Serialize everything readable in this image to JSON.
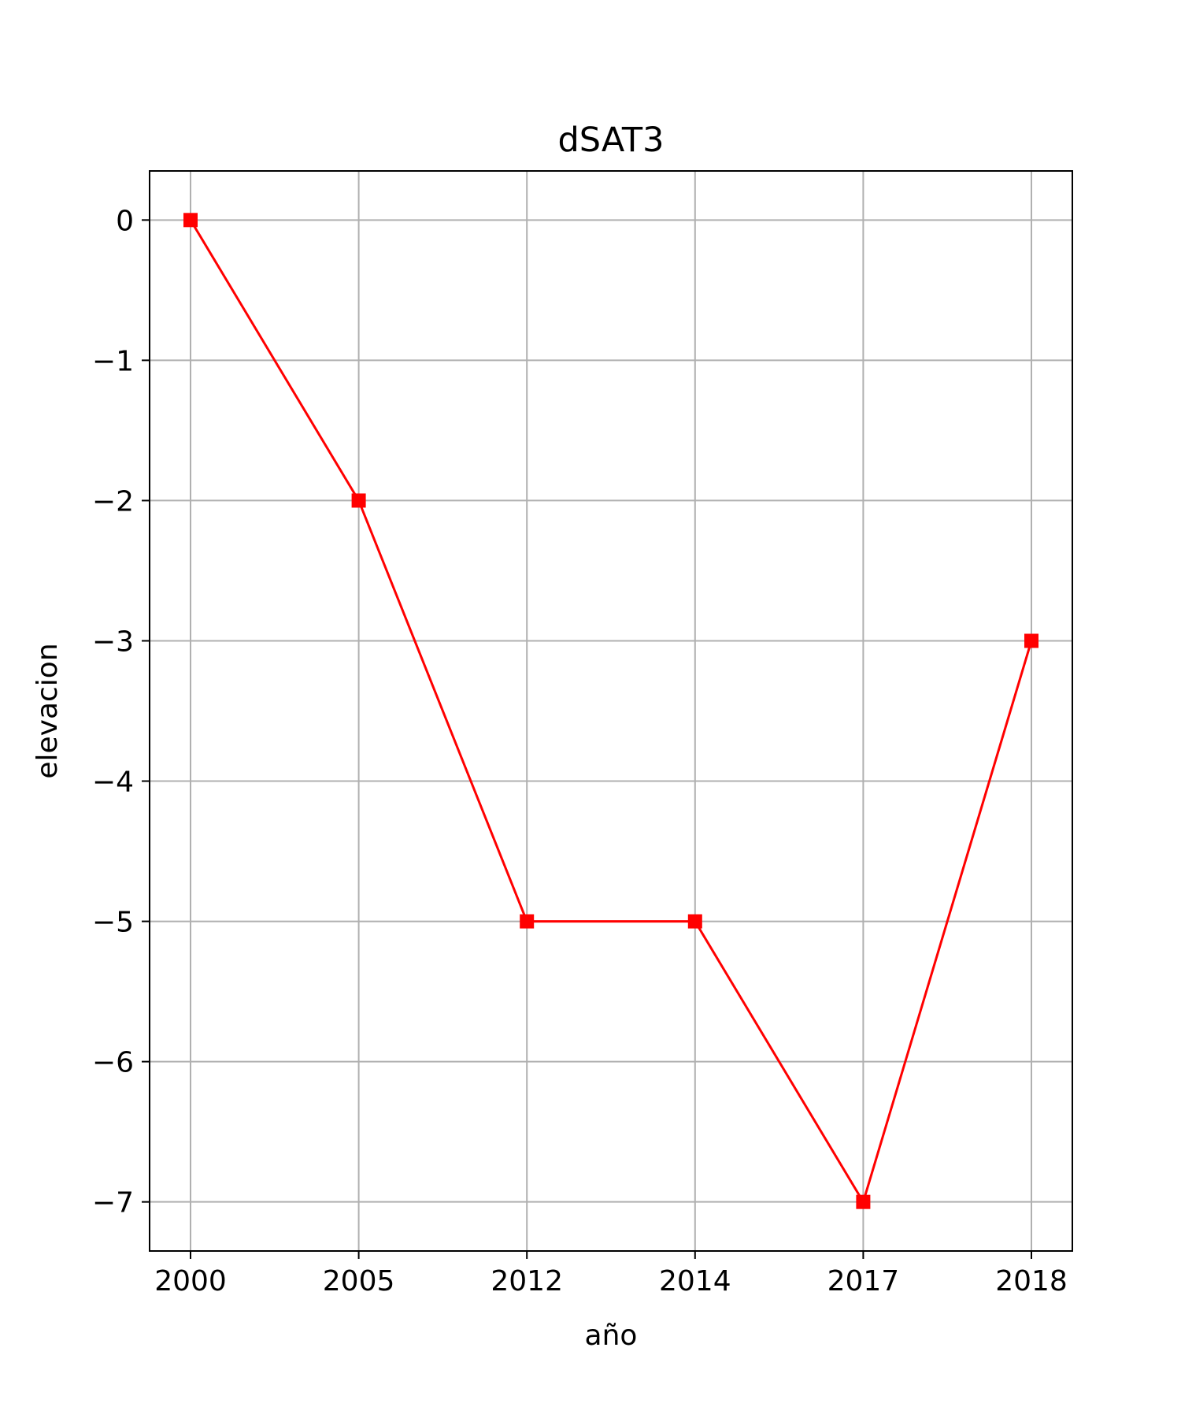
{
  "chart_data": {
    "type": "line",
    "title": "dSAT3",
    "xlabel": "año",
    "ylabel": "elevacion",
    "categories": [
      "2000",
      "2005",
      "2012",
      "2014",
      "2017",
      "2018"
    ],
    "series": [
      {
        "values": [
          0,
          -2,
          -5,
          -5,
          -7,
          -3
        ],
        "color": "#ff0000",
        "marker": "square"
      }
    ],
    "yticks": [
      0,
      -1,
      -2,
      -3,
      -4,
      -5,
      -6,
      -7
    ],
    "ytick_labels": [
      "0",
      "−1",
      "−2",
      "−3",
      "−4",
      "−5",
      "−6",
      "−7"
    ],
    "ylim": [
      -7.35,
      0.35
    ],
    "grid": true,
    "grid_color": "#b0b0b0"
  }
}
